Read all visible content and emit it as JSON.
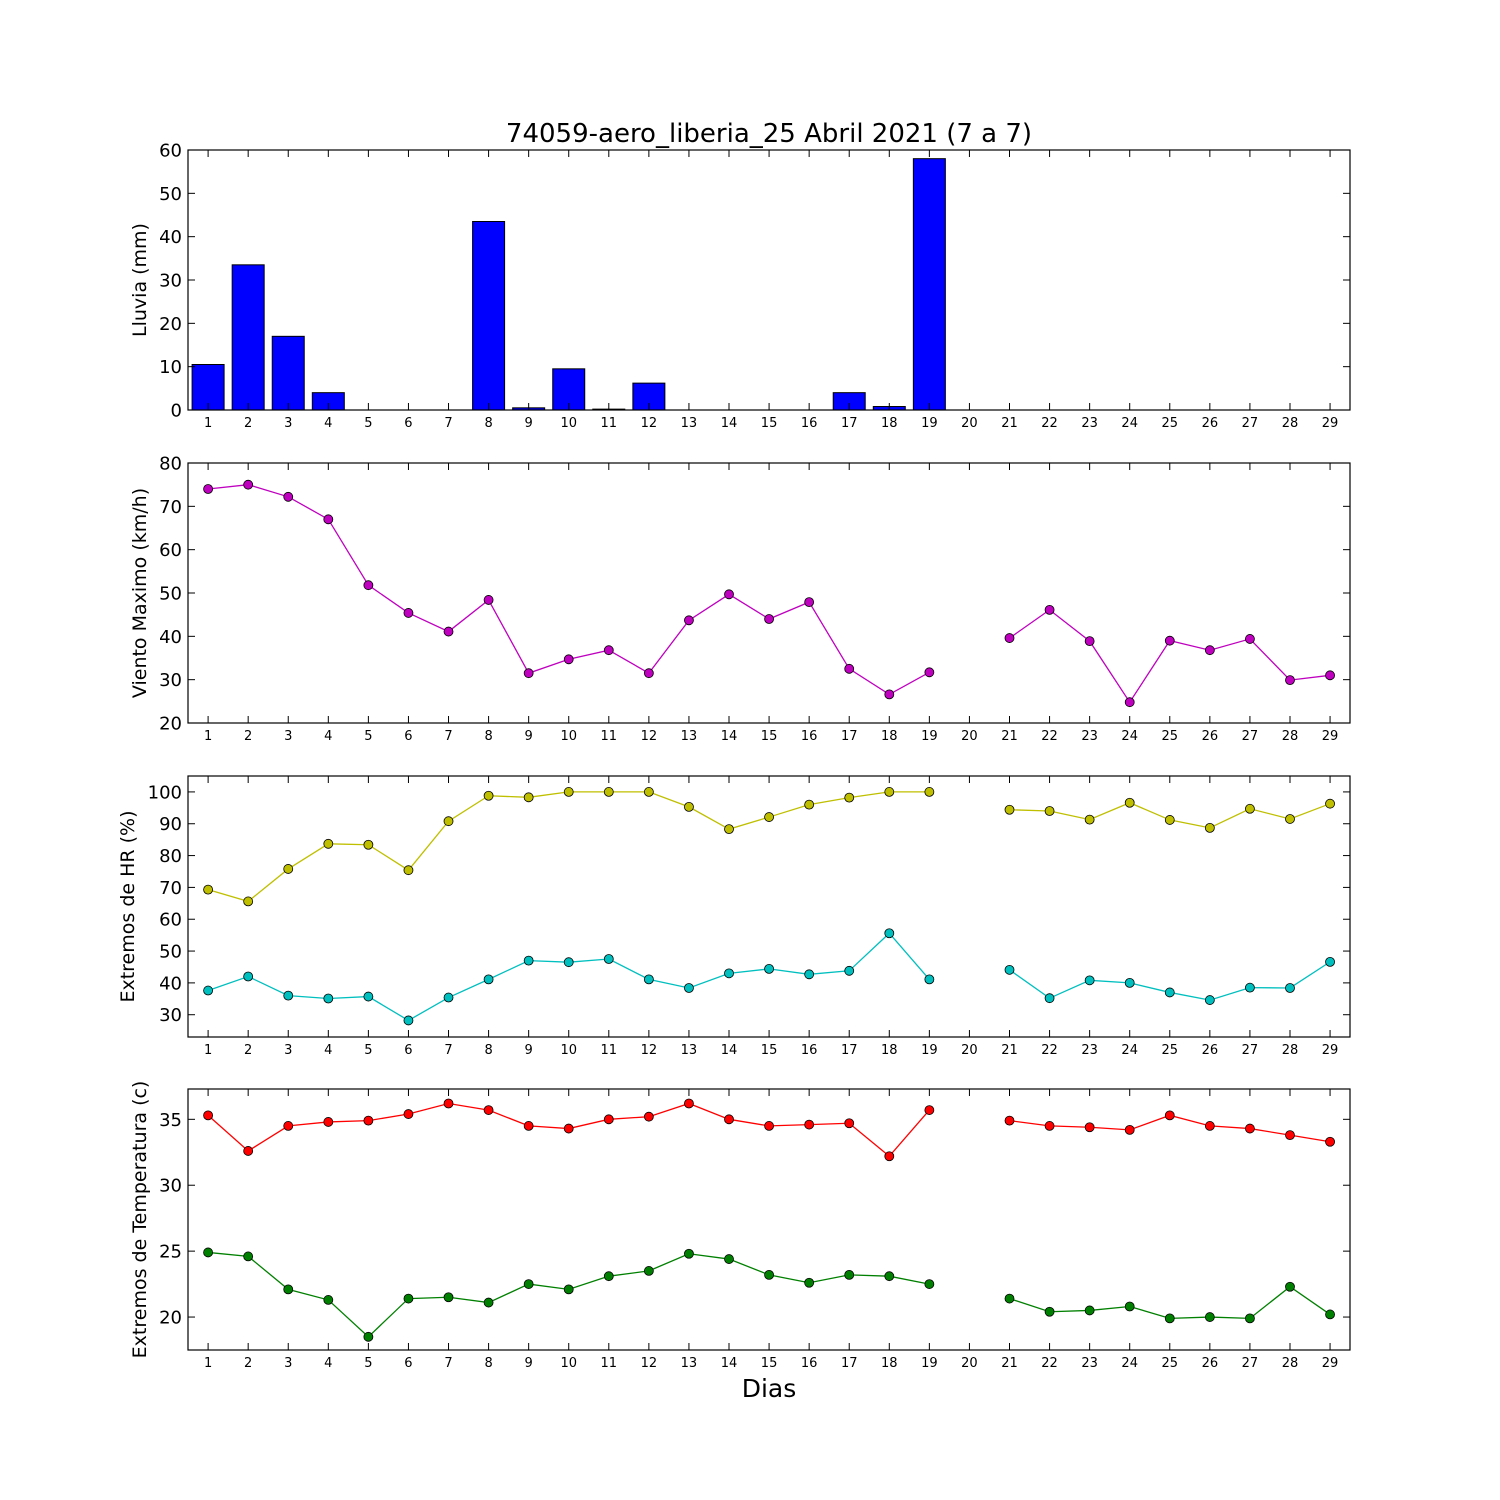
{
  "chart_data": [
    {
      "type": "bar",
      "title": "74059-aero_liberia_25 Abril 2021  (7 a 7)",
      "xlabel": "",
      "ylabel": "Lluvia (mm)",
      "ylim": [
        0,
        60
      ],
      "yticks": [
        0,
        10,
        20,
        30,
        40,
        50,
        60
      ],
      "categories": [
        "1",
        "2",
        "3",
        "4",
        "5",
        "6",
        "7",
        "8",
        "9",
        "10",
        "11",
        "12",
        "13",
        "14",
        "15",
        "16",
        "17",
        "18",
        "19",
        "20",
        "21",
        "22",
        "23",
        "24",
        "25",
        "26",
        "27",
        "28",
        "29"
      ],
      "series": [
        {
          "color": "#0000ff",
          "values": [
            10.5,
            33.5,
            17,
            4,
            0,
            0,
            0,
            43.5,
            0.5,
            9.5,
            0.2,
            6.2,
            0,
            0,
            0,
            0,
            4,
            0.8,
            58,
            0,
            0,
            0,
            0,
            0,
            0,
            0,
            0,
            0,
            0
          ]
        }
      ]
    },
    {
      "type": "line",
      "title": "",
      "xlabel": "",
      "ylabel": "Viento Maximo (km/h)",
      "ylim": [
        20,
        80
      ],
      "yticks": [
        20,
        30,
        40,
        50,
        60,
        70,
        80
      ],
      "categories": [
        "1",
        "2",
        "3",
        "4",
        "5",
        "6",
        "7",
        "8",
        "9",
        "10",
        "11",
        "12",
        "13",
        "14",
        "15",
        "16",
        "17",
        "18",
        "19",
        "20",
        "21",
        "22",
        "23",
        "24",
        "25",
        "26",
        "27",
        "28",
        "29"
      ],
      "series": [
        {
          "color": "#bf00bf",
          "values": [
            74,
            75,
            72.2,
            67,
            51.8,
            45.4,
            41.1,
            48.4,
            31.5,
            34.7,
            36.8,
            31.5,
            43.7,
            49.7,
            44,
            47.9,
            32.5,
            26.6,
            31.7,
            null,
            39.6,
            46.1,
            38.9,
            24.8,
            39,
            36.8,
            39.4,
            29.9,
            31
          ]
        }
      ]
    },
    {
      "type": "line",
      "title": "",
      "xlabel": "",
      "ylabel": "Extremos de HR (%)",
      "ylim": [
        23,
        105
      ],
      "yticks": [
        30,
        40,
        50,
        60,
        70,
        80,
        90,
        100
      ],
      "categories": [
        "1",
        "2",
        "3",
        "4",
        "5",
        "6",
        "7",
        "8",
        "9",
        "10",
        "11",
        "12",
        "13",
        "14",
        "15",
        "16",
        "17",
        "18",
        "19",
        "20",
        "21",
        "22",
        "23",
        "24",
        "25",
        "26",
        "27",
        "28",
        "29"
      ],
      "series": [
        {
          "color": "#bfbf00",
          "values": [
            69.3,
            65.6,
            75.8,
            83.7,
            83.4,
            75.4,
            90.8,
            98.8,
            98.3,
            100,
            100,
            100,
            95.3,
            88.3,
            92.1,
            96,
            98.2,
            100,
            100,
            null,
            94.4,
            94,
            91.3,
            96.6,
            91.2,
            88.7,
            94.7,
            91.5,
            96.3
          ]
        },
        {
          "color": "#00bfbf",
          "values": [
            37.6,
            42,
            36,
            35.1,
            35.7,
            28.2,
            35.4,
            41.1,
            47,
            46.5,
            47.5,
            41.1,
            38.4,
            43,
            44.4,
            42.7,
            43.8,
            55.6,
            41.1,
            null,
            44.1,
            35.2,
            40.8,
            40,
            37,
            34.6,
            38.5,
            38.4,
            46.6
          ]
        }
      ]
    },
    {
      "type": "line",
      "title": "",
      "xlabel": "Dias",
      "ylabel": "Extremos de Temperatura (c)",
      "ylim": [
        17.5,
        37.3
      ],
      "yticks": [
        20,
        25,
        30,
        35
      ],
      "categories": [
        "1",
        "2",
        "3",
        "4",
        "5",
        "6",
        "7",
        "8",
        "9",
        "10",
        "11",
        "12",
        "13",
        "14",
        "15",
        "16",
        "17",
        "18",
        "19",
        "20",
        "21",
        "22",
        "23",
        "24",
        "25",
        "26",
        "27",
        "28",
        "29"
      ],
      "series": [
        {
          "color": "#ff0000",
          "values": [
            35.3,
            32.6,
            34.5,
            34.8,
            34.9,
            35.4,
            36.2,
            35.7,
            34.5,
            34.3,
            35,
            35.2,
            36.2,
            35,
            34.5,
            34.6,
            34.7,
            32.2,
            35.7,
            null,
            34.9,
            34.5,
            34.4,
            34.2,
            35.3,
            34.5,
            34.3,
            33.8,
            33.3
          ]
        },
        {
          "color": "#008000",
          "values": [
            24.9,
            24.6,
            22.1,
            21.3,
            18.5,
            21.4,
            21.5,
            21.1,
            22.5,
            22.1,
            23.1,
            23.5,
            24.8,
            24.4,
            23.2,
            22.6,
            23.2,
            23.1,
            22.5,
            null,
            21.4,
            20.4,
            20.5,
            20.8,
            19.9,
            20,
            19.9,
            22.3,
            20.2
          ]
        }
      ]
    }
  ]
}
